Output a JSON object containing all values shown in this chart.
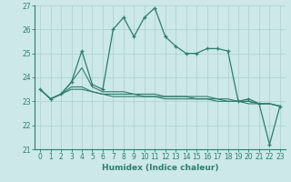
{
  "xlabel": "Humidex (Indice chaleur)",
  "x": [
    0,
    1,
    2,
    3,
    4,
    5,
    6,
    7,
    8,
    9,
    10,
    11,
    12,
    13,
    14,
    15,
    16,
    17,
    18,
    19,
    20,
    21,
    22,
    23
  ],
  "line1": [
    23.5,
    23.1,
    23.3,
    23.8,
    25.1,
    23.7,
    23.5,
    26.0,
    26.5,
    25.7,
    26.5,
    26.9,
    25.7,
    25.3,
    25.0,
    25.0,
    25.2,
    25.2,
    25.1,
    23.0,
    23.1,
    22.9,
    21.2,
    22.8
  ],
  "line2": [
    23.5,
    23.1,
    23.3,
    23.8,
    24.4,
    23.6,
    23.4,
    23.4,
    23.4,
    23.3,
    23.3,
    23.3,
    23.2,
    23.2,
    23.2,
    23.2,
    23.2,
    23.1,
    23.1,
    23.0,
    23.0,
    22.9,
    22.9,
    22.8
  ],
  "line3": [
    23.5,
    23.1,
    23.3,
    23.6,
    23.6,
    23.4,
    23.3,
    23.3,
    23.3,
    23.3,
    23.2,
    23.2,
    23.2,
    23.2,
    23.2,
    23.1,
    23.1,
    23.1,
    23.0,
    23.0,
    23.0,
    22.9,
    22.9,
    22.8
  ],
  "line4": [
    23.5,
    23.1,
    23.3,
    23.5,
    23.5,
    23.4,
    23.3,
    23.2,
    23.2,
    23.2,
    23.2,
    23.2,
    23.1,
    23.1,
    23.1,
    23.1,
    23.1,
    23.0,
    23.0,
    23.0,
    22.9,
    22.9,
    22.9,
    22.8
  ],
  "line_color": "#2e7d6e",
  "bg_color": "#cce8e8",
  "grid_color": "#aacfcf",
  "ylim": [
    21,
    27
  ],
  "xlim_min": -0.5,
  "xlim_max": 23.5,
  "yticks": [
    21,
    22,
    23,
    24,
    25,
    26,
    27
  ],
  "xticks": [
    0,
    1,
    2,
    3,
    4,
    5,
    6,
    7,
    8,
    9,
    10,
    11,
    12,
    13,
    14,
    15,
    16,
    17,
    18,
    19,
    20,
    21,
    22,
    23
  ]
}
